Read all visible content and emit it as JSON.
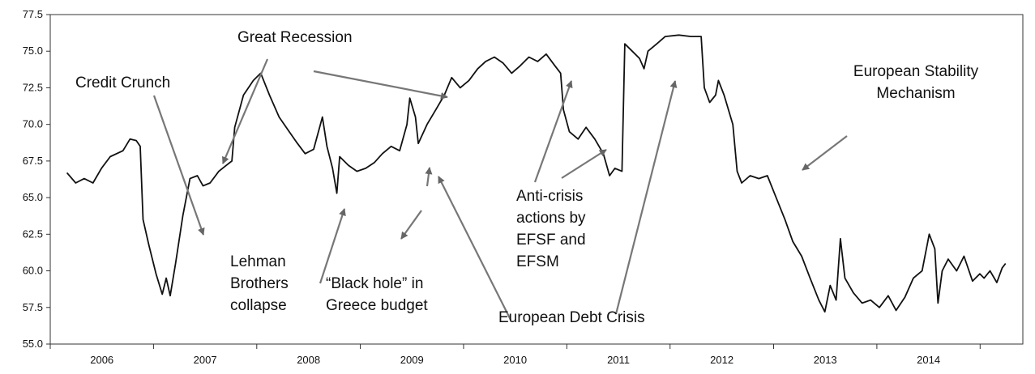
{
  "chart_data": {
    "type": "line",
    "title": "",
    "xlabel": "",
    "ylabel": "",
    "ylim": [
      55.0,
      77.5
    ],
    "xlim": [
      "2006-01-01",
      "2014-12-31"
    ],
    "grid": false,
    "legend": "none",
    "y_ticks": [
      "55.0",
      "57.5",
      "60.0",
      "62.5",
      "65.0",
      "67.5",
      "70.0",
      "72.5",
      "75.0",
      "77.5"
    ],
    "x_ticks": [
      "2006",
      "2007",
      "2008",
      "2009",
      "2010",
      "2011",
      "2012",
      "2013",
      "2014"
    ],
    "series": [
      {
        "color": "#111111",
        "points": [
          [
            "2006-03-01",
            66.7
          ],
          [
            "2006-04-01",
            66.0
          ],
          [
            "2006-05-01",
            66.3
          ],
          [
            "2006-06-01",
            66.0
          ],
          [
            "2006-07-01",
            67.0
          ],
          [
            "2006-08-01",
            67.8
          ],
          [
            "2006-09-15",
            68.2
          ],
          [
            "2006-10-10",
            69.0
          ],
          [
            "2006-11-01",
            68.9
          ],
          [
            "2006-11-15",
            68.5
          ],
          [
            "2006-11-25",
            63.5
          ],
          [
            "2006-12-15",
            61.8
          ],
          [
            "2007-01-10",
            59.8
          ],
          [
            "2007-02-01",
            58.4
          ],
          [
            "2007-02-15",
            59.5
          ],
          [
            "2007-03-01",
            58.3
          ],
          [
            "2007-03-20",
            60.5
          ],
          [
            "2007-04-15",
            63.8
          ],
          [
            "2007-05-10",
            66.3
          ],
          [
            "2007-06-05",
            66.5
          ],
          [
            "2007-06-25",
            65.8
          ],
          [
            "2007-07-20",
            66.0
          ],
          [
            "2007-08-20",
            66.8
          ],
          [
            "2007-09-15",
            67.2
          ],
          [
            "2007-10-05",
            67.5
          ],
          [
            "2007-10-15",
            69.8
          ],
          [
            "2007-11-15",
            72.0
          ],
          [
            "2007-12-20",
            73.0
          ],
          [
            "2008-01-15",
            73.5
          ],
          [
            "2008-02-15",
            72.0
          ],
          [
            "2008-03-20",
            70.5
          ],
          [
            "2008-04-25",
            69.5
          ],
          [
            "2008-05-20",
            68.8
          ],
          [
            "2008-06-20",
            68.0
          ],
          [
            "2008-07-20",
            68.3
          ],
          [
            "2008-08-20",
            70.5
          ],
          [
            "2008-09-05",
            68.5
          ],
          [
            "2008-09-25",
            67.0
          ],
          [
            "2008-10-10",
            65.3
          ],
          [
            "2008-10-20",
            67.8
          ],
          [
            "2008-11-20",
            67.2
          ],
          [
            "2008-12-20",
            66.8
          ],
          [
            "2009-01-20",
            67.0
          ],
          [
            "2009-02-20",
            67.4
          ],
          [
            "2009-03-20",
            68.0
          ],
          [
            "2009-04-20",
            68.5
          ],
          [
            "2009-05-20",
            68.2
          ],
          [
            "2009-06-15",
            70.0
          ],
          [
            "2009-06-25",
            71.8
          ],
          [
            "2009-07-15",
            70.5
          ],
          [
            "2009-07-25",
            68.7
          ],
          [
            "2009-08-25",
            70.0
          ],
          [
            "2009-09-25",
            71.0
          ],
          [
            "2009-10-25",
            72.0
          ],
          [
            "2009-11-20",
            73.2
          ],
          [
            "2009-12-20",
            72.5
          ],
          [
            "2010-01-20",
            73.0
          ],
          [
            "2010-02-20",
            73.8
          ],
          [
            "2010-03-20",
            74.3
          ],
          [
            "2010-04-20",
            74.6
          ],
          [
            "2010-05-20",
            74.2
          ],
          [
            "2010-06-20",
            73.5
          ],
          [
            "2010-07-20",
            74.0
          ],
          [
            "2010-08-20",
            74.6
          ],
          [
            "2010-09-20",
            74.3
          ],
          [
            "2010-10-20",
            74.8
          ],
          [
            "2010-11-20",
            74.0
          ],
          [
            "2010-12-10",
            73.5
          ],
          [
            "2010-12-20",
            71.0
          ],
          [
            "2011-01-10",
            69.5
          ],
          [
            "2011-02-10",
            69.0
          ],
          [
            "2011-03-10",
            69.8
          ],
          [
            "2011-04-10",
            69.0
          ],
          [
            "2011-05-10",
            68.0
          ],
          [
            "2011-06-01",
            66.5
          ],
          [
            "2011-06-20",
            67.0
          ],
          [
            "2011-07-15",
            66.8
          ],
          [
            "2011-07-25",
            75.5
          ],
          [
            "2011-08-20",
            75.0
          ],
          [
            "2011-09-15",
            74.5
          ],
          [
            "2011-10-01",
            73.8
          ],
          [
            "2011-10-15",
            75.0
          ],
          [
            "2011-11-15",
            75.5
          ],
          [
            "2011-12-15",
            76.0
          ],
          [
            "2012-02-01",
            76.1
          ],
          [
            "2012-03-15",
            76.0
          ],
          [
            "2012-04-20",
            76.0
          ],
          [
            "2012-05-01",
            72.5
          ],
          [
            "2012-05-20",
            71.5
          ],
          [
            "2012-06-10",
            72.0
          ],
          [
            "2012-06-20",
            73.0
          ],
          [
            "2012-07-10",
            72.0
          ],
          [
            "2012-08-10",
            70.0
          ],
          [
            "2012-08-25",
            66.8
          ],
          [
            "2012-09-10",
            66.0
          ],
          [
            "2012-10-10",
            66.5
          ],
          [
            "2012-11-10",
            66.3
          ],
          [
            "2012-12-10",
            66.5
          ],
          [
            "2013-01-10",
            65.0
          ],
          [
            "2013-02-10",
            63.5
          ],
          [
            "2013-03-10",
            62.0
          ],
          [
            "2013-04-10",
            61.0
          ],
          [
            "2013-05-10",
            59.5
          ],
          [
            "2013-06-10",
            58.0
          ],
          [
            "2013-07-01",
            57.2
          ],
          [
            "2013-07-20",
            59.0
          ],
          [
            "2013-08-10",
            58.0
          ],
          [
            "2013-08-25",
            62.2
          ],
          [
            "2013-09-10",
            59.5
          ],
          [
            "2013-10-10",
            58.5
          ],
          [
            "2013-11-10",
            57.8
          ],
          [
            "2013-12-10",
            58.0
          ],
          [
            "2014-01-10",
            57.5
          ],
          [
            "2014-02-10",
            58.3
          ],
          [
            "2014-03-10",
            57.3
          ],
          [
            "2014-04-10",
            58.2
          ],
          [
            "2014-05-10",
            59.5
          ],
          [
            "2014-06-10",
            60.0
          ],
          [
            "2014-07-05",
            62.5
          ],
          [
            "2014-07-25",
            61.5
          ],
          [
            "2014-08-05",
            57.8
          ],
          [
            "2014-08-20",
            60.0
          ],
          [
            "2014-09-10",
            60.8
          ],
          [
            "2014-10-10",
            60.0
          ],
          [
            "2014-11-05",
            61.0
          ],
          [
            "2014-12-05",
            59.3
          ],
          [
            "2014-12-31",
            59.8
          ],
          [
            "2015-01-15",
            59.5
          ],
          [
            "2015-02-05",
            60.0
          ],
          [
            "2015-03-01",
            59.2
          ],
          [
            "2015-03-20",
            60.2
          ],
          [
            "2015-04-01",
            60.5
          ]
        ]
      }
    ],
    "annotations": [
      {
        "lines": [
          "Credit Crunch"
        ]
      },
      {
        "lines": [
          "Great Recession"
        ]
      },
      {
        "lines": [
          "Lehman",
          "Brothers",
          "collapse"
        ]
      },
      {
        "lines": [
          "“Black hole” in",
          "Greece budget"
        ]
      },
      {
        "lines": [
          "Anti-crisis",
          "actions by",
          "EFSF and",
          "EFSM"
        ]
      },
      {
        "lines": [
          "European Debt Crisis"
        ]
      },
      {
        "lines": [
          "European Stability",
          "Mechanism"
        ]
      }
    ]
  }
}
